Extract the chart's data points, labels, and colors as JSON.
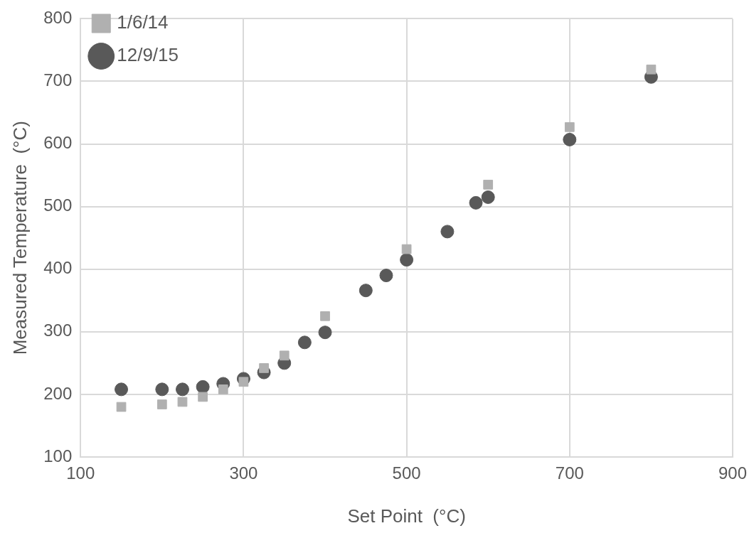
{
  "chart_data": {
    "type": "scatter",
    "xlabel": "Set Point  (°C)",
    "ylabel": "Measured Temperature  (°C)",
    "xlim": [
      100,
      900
    ],
    "xticks": [
      100,
      300,
      500,
      700,
      900
    ],
    "ylim": [
      100,
      800
    ],
    "yticks": [
      100,
      200,
      300,
      400,
      500,
      600,
      700,
      800
    ],
    "grid": true,
    "legend": "top left",
    "series": [
      {
        "name": "12/9/15",
        "color": "#595959",
        "marker": "circle",
        "x": [
          150,
          200,
          225,
          250,
          275,
          300,
          325,
          350,
          375,
          400,
          450,
          475,
          500,
          550,
          585,
          600,
          700,
          800
        ],
        "values": [
          208,
          208,
          208,
          212,
          217,
          225,
          235,
          250,
          283,
          299,
          366,
          390,
          415,
          460,
          506,
          515,
          607,
          707
        ]
      },
      {
        "name": "1/6/14",
        "color": "#b0b0b0",
        "marker": "square",
        "x": [
          150,
          200,
          225,
          250,
          275,
          300,
          325,
          350,
          400,
          500,
          600,
          700,
          800
        ],
        "values": [
          180,
          184,
          188,
          196,
          208,
          220,
          242,
          262,
          325,
          432,
          535,
          627,
          719
        ]
      }
    ]
  }
}
